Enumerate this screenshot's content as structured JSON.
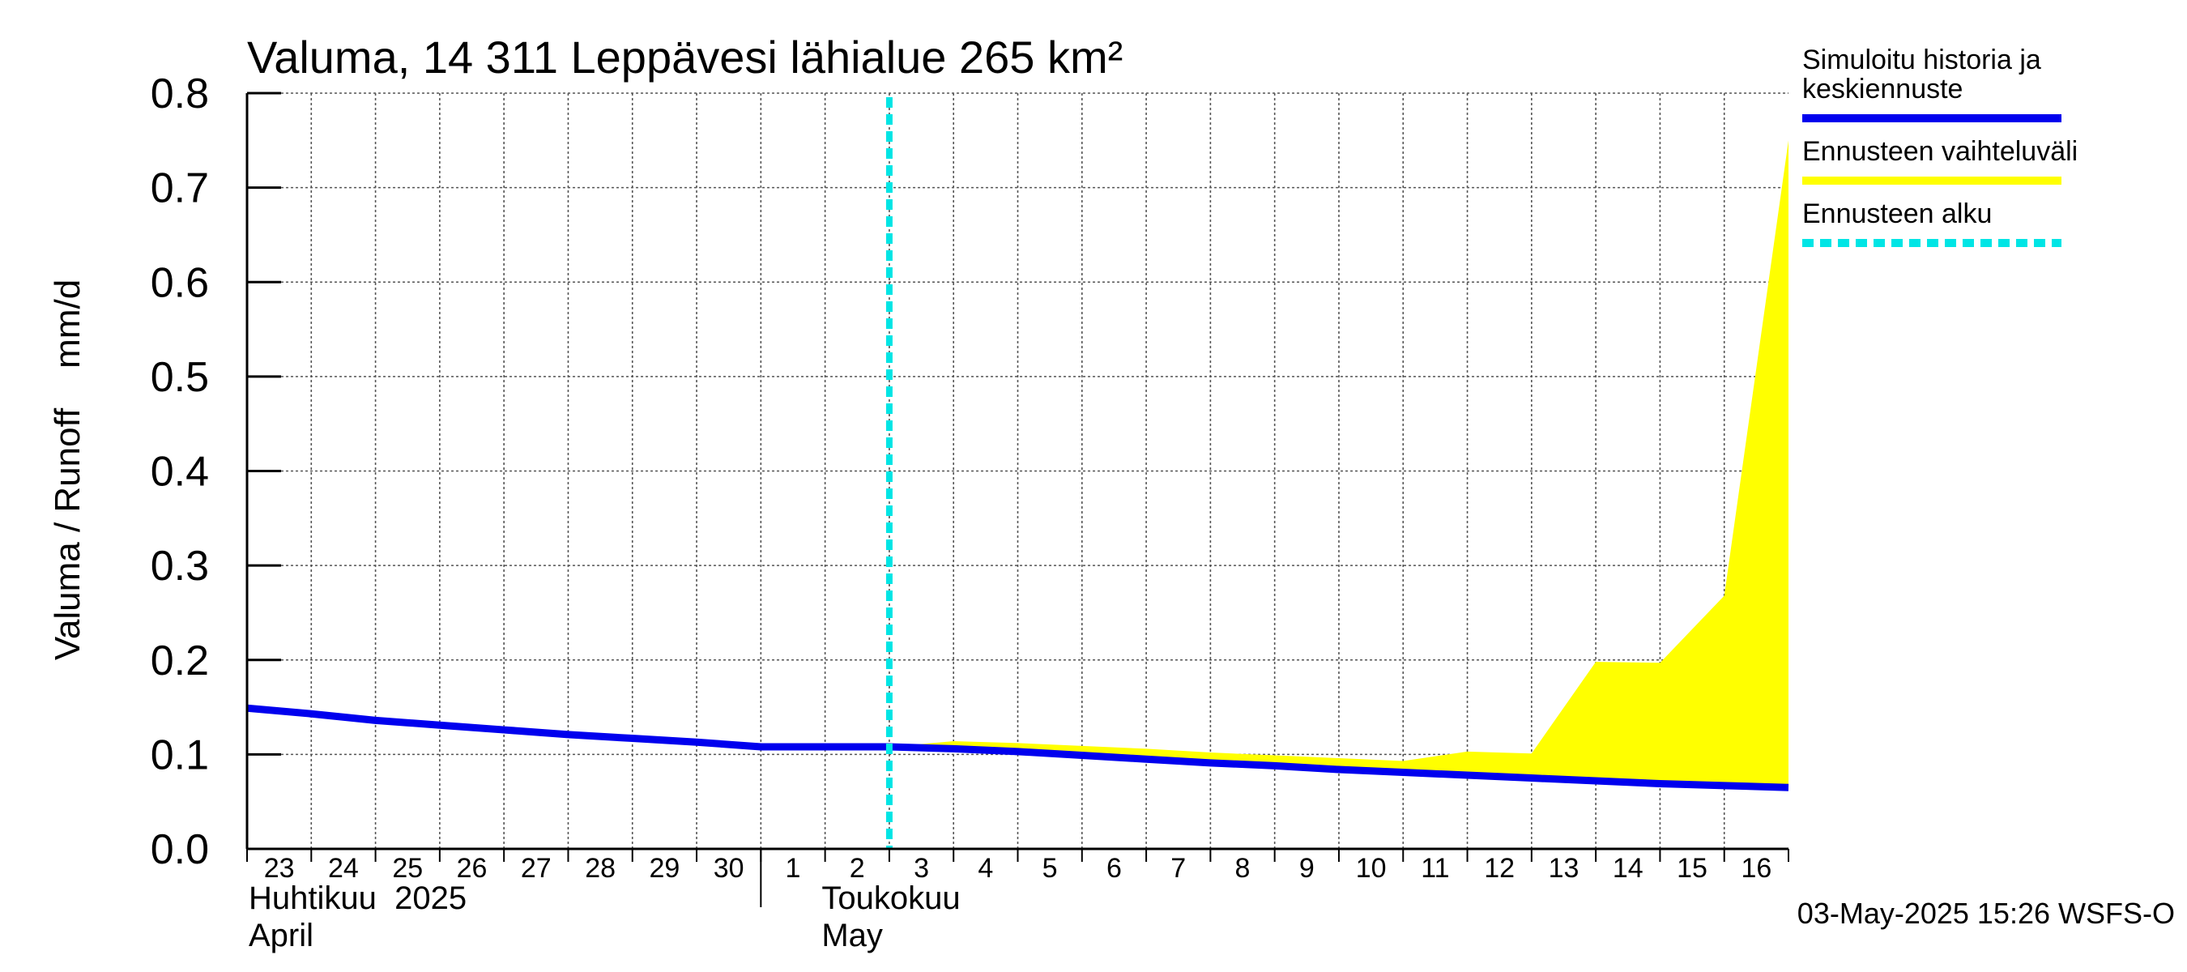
{
  "chart_data": {
    "type": "area",
    "title": "Valuma, 14 311 Leppävesi lähialue 265 km²",
    "ylabel": "Valuma / Runoff    mm/d",
    "ylim": [
      0,
      0.8
    ],
    "y_ticks": [
      "0.0",
      "0.1",
      "0.2",
      "0.3",
      "0.4",
      "0.5",
      "0.6",
      "0.7",
      "0.8"
    ],
    "x_tick_labels": [
      "23",
      "24",
      "25",
      "26",
      "27",
      "28",
      "29",
      "30",
      "1",
      "2",
      "3",
      "4",
      "5",
      "6",
      "7",
      "8",
      "9",
      "10",
      "11",
      "12",
      "13",
      "14",
      "15",
      "16"
    ],
    "month_labels": [
      {
        "fi": "Huhtikuu  2025",
        "en": "April"
      },
      {
        "fi": "Toukokuu",
        "en": "May"
      }
    ],
    "forecast_start_day_index": 10,
    "series": [
      {
        "name": "Simuloitu historia ja keskiennuste",
        "color": "#0000ee",
        "x": [
          0,
          1,
          2,
          3,
          4,
          5,
          6,
          7,
          8,
          9,
          10,
          11,
          12,
          13,
          14,
          15,
          16,
          17,
          18,
          19,
          20,
          21,
          22,
          23,
          24
        ],
        "values": [
          0.149,
          0.143,
          0.136,
          0.131,
          0.126,
          0.121,
          0.117,
          0.113,
          0.108,
          0.108,
          0.108,
          0.106,
          0.103,
          0.099,
          0.095,
          0.091,
          0.088,
          0.084,
          0.081,
          0.078,
          0.075,
          0.072,
          0.069,
          0.067,
          0.065
        ]
      },
      {
        "name": "Ennusteen vaihteluväli",
        "color": "#ffff00",
        "x": [
          10,
          11,
          12,
          13,
          14,
          15,
          16,
          17,
          18,
          19,
          20,
          21,
          22,
          23,
          24
        ],
        "upper": [
          0.108,
          0.114,
          0.112,
          0.109,
          0.106,
          0.102,
          0.099,
          0.096,
          0.093,
          0.103,
          0.101,
          0.198,
          0.197,
          0.268,
          0.75
        ],
        "lower": [
          0.108,
          0.106,
          0.103,
          0.099,
          0.095,
          0.091,
          0.088,
          0.084,
          0.081,
          0.078,
          0.075,
          0.072,
          0.069,
          0.067,
          0.062
        ]
      }
    ],
    "legend": [
      {
        "label_lines": [
          "Simuloitu historia ja",
          "keskiennuste"
        ],
        "color": "#0000ee",
        "style": "solid"
      },
      {
        "label_lines": [
          "Ennusteen vaihteluväli"
        ],
        "color": "#ffff00",
        "style": "solid"
      },
      {
        "label_lines": [
          "Ennusteen alku"
        ],
        "color": "#00e5e5",
        "style": "dashed"
      }
    ],
    "timestamp": "03-May-2025 15:26 WSFS-O"
  }
}
